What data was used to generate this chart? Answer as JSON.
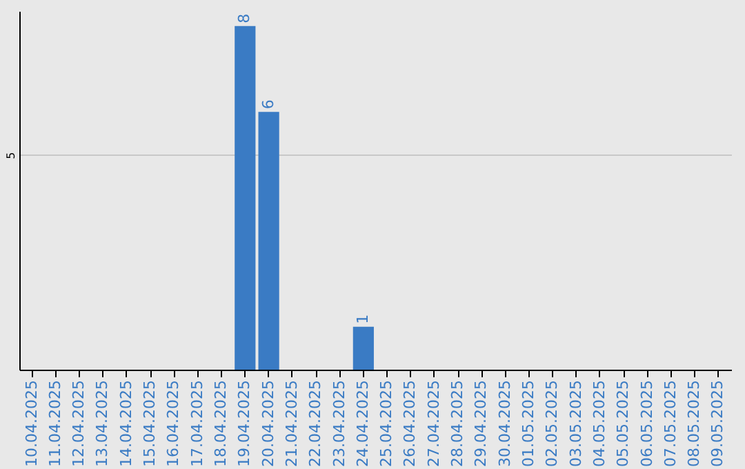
{
  "chart_data": {
    "type": "bar",
    "categories": [
      "10.04.2025",
      "11.04.2025",
      "12.04.2025",
      "13.04.2025",
      "14.04.2025",
      "15.04.2025",
      "16.04.2025",
      "17.04.2025",
      "18.04.2025",
      "19.04.2025",
      "20.04.2025",
      "21.04.2025",
      "22.04.2025",
      "23.04.2025",
      "24.04.2025",
      "25.04.2025",
      "26.04.2025",
      "27.04.2025",
      "28.04.2025",
      "29.04.2025",
      "30.04.2025",
      "01.05.2025",
      "02.05.2025",
      "03.05.2025",
      "04.05.2025",
      "05.05.2025",
      "06.05.2025",
      "07.05.2025",
      "08.05.2025",
      "09.05.2025"
    ],
    "values": [
      0,
      0,
      0,
      0,
      0,
      0,
      0,
      0,
      0,
      8,
      6,
      0,
      0,
      0,
      1,
      0,
      0,
      0,
      0,
      0,
      0,
      0,
      0,
      0,
      0,
      0,
      0,
      0,
      0,
      0
    ],
    "value_labels": [
      null,
      null,
      null,
      null,
      null,
      null,
      null,
      null,
      null,
      "8",
      "6",
      null,
      null,
      null,
      "1",
      null,
      null,
      null,
      null,
      null,
      null,
      null,
      null,
      null,
      null,
      null,
      null,
      null,
      null,
      null
    ],
    "color": "#3a7bc4",
    "ylim": [
      0,
      8.35
    ],
    "yticks": [
      5
    ],
    "grid": "y"
  }
}
